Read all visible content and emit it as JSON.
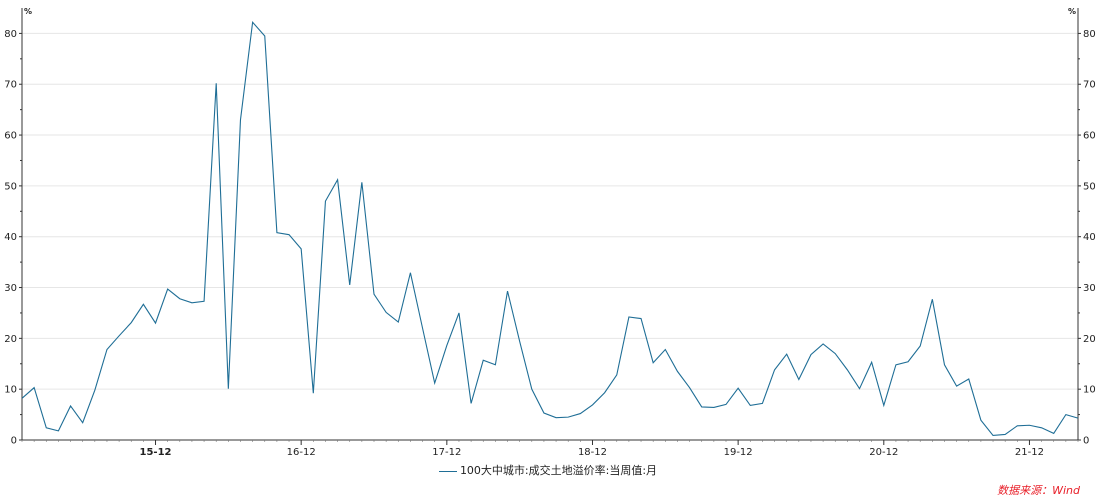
{
  "chart_data": {
    "type": "line",
    "y_unit_left": "%",
    "y_unit_right": "%",
    "ylim": [
      0,
      85
    ],
    "yticks": [
      0,
      10,
      20,
      30,
      40,
      50,
      60,
      70,
      80
    ],
    "xticks": [
      {
        "label": "15-12",
        "index": 11,
        "bold": true
      },
      {
        "label": "16-12",
        "index": 23,
        "bold": false
      },
      {
        "label": "17-12",
        "index": 35,
        "bold": false
      },
      {
        "label": "18-12",
        "index": 47,
        "bold": false
      },
      {
        "label": "19-12",
        "index": 59,
        "bold": false
      },
      {
        "label": "20-12",
        "index": 71,
        "bold": false
      },
      {
        "label": "21-12",
        "index": 83,
        "bold": false
      }
    ],
    "grid": true,
    "legend_position": "bottom-center",
    "series": [
      {
        "name": "100大中城市:成交土地溢价率:当周值:月",
        "color": "#1f6e96",
        "values": [
          8.2,
          10.3,
          2.4,
          1.8,
          6.7,
          3.4,
          9.8,
          17.8,
          20.5,
          23.1,
          26.7,
          23.0,
          29.7,
          27.8,
          27.0,
          27.3,
          70.2,
          10.1,
          63.0,
          82.2,
          79.5,
          40.8,
          40.4,
          37.6,
          9.2,
          47.0,
          51.2,
          30.5,
          50.7,
          28.7,
          25.1,
          23.2,
          32.9,
          22.0,
          11.2,
          18.6,
          25.0,
          7.2,
          15.7,
          14.8,
          29.3,
          19.4,
          10.0,
          5.3,
          4.4,
          4.5,
          5.2,
          6.9,
          9.3,
          12.8,
          24.2,
          23.9,
          15.2,
          17.8,
          13.5,
          10.3,
          6.5,
          6.4,
          7.0,
          10.2,
          6.8,
          7.2,
          13.8,
          16.9,
          11.9,
          16.8,
          18.9,
          17.0,
          13.8,
          10.1,
          15.3,
          6.8,
          14.8,
          15.4,
          18.5,
          27.7,
          14.8,
          10.6,
          12.0,
          3.9,
          0.9,
          1.1,
          2.8,
          2.9,
          2.4,
          1.3,
          5.0,
          4.3
        ]
      }
    ]
  },
  "legend": {
    "label": "100大中城市:成交土地溢价率:当周值:月"
  },
  "source": {
    "text": "数据来源：Wind"
  }
}
